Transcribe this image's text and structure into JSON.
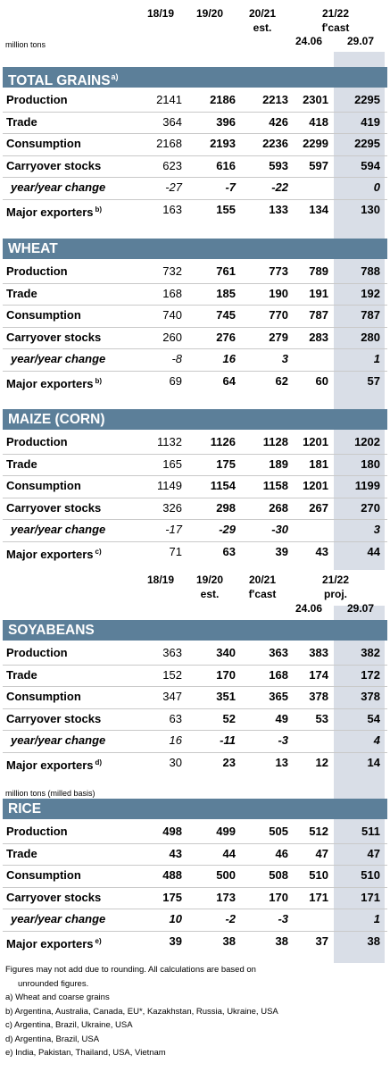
{
  "header_top": {
    "col1": "18/19",
    "col2": "19/20",
    "col3": "20/21",
    "col3_sub": "est.",
    "col45": "21/22",
    "col45_sub": "f'cast",
    "col4_date": "24.06",
    "col5_date": "29.07",
    "unit": "million tons"
  },
  "header_mid": {
    "col1": "18/19",
    "col2": "19/20",
    "col2_sub": "est.",
    "col3": "20/21",
    "col3_sub": "f'cast",
    "col45": "21/22",
    "col45_sub": "proj.",
    "col4_date": "24.06",
    "col5_date": "29.07"
  },
  "sections": [
    {
      "title": "TOTAL GRAINS",
      "title_sup": "a)",
      "rows": [
        {
          "label": "Production",
          "values": [
            "2141",
            "2186",
            "2213",
            "2301",
            "2295"
          ]
        },
        {
          "label": "Trade",
          "values": [
            "364",
            "396",
            "426",
            "418",
            "419"
          ]
        },
        {
          "label": "Consumption",
          "values": [
            "2168",
            "2193",
            "2236",
            "2299",
            "2295"
          ]
        },
        {
          "label": "Carryover stocks",
          "values": [
            "623",
            "616",
            "593",
            "597",
            "594"
          ]
        },
        {
          "label": "year/year change",
          "values": [
            "-27",
            "-7",
            "-22",
            "",
            "0"
          ]
        },
        {
          "label": "Major exporters",
          "sup": "b)",
          "values": [
            "163",
            "155",
            "133",
            "134",
            "130"
          ]
        }
      ]
    },
    {
      "title": "WHEAT",
      "title_sup": "",
      "rows": [
        {
          "label": "Production",
          "values": [
            "732",
            "761",
            "773",
            "789",
            "788"
          ]
        },
        {
          "label": "Trade",
          "values": [
            "168",
            "185",
            "190",
            "191",
            "192"
          ]
        },
        {
          "label": "Consumption",
          "values": [
            "740",
            "745",
            "770",
            "787",
            "787"
          ]
        },
        {
          "label": "Carryover stocks",
          "values": [
            "260",
            "276",
            "279",
            "283",
            "280"
          ]
        },
        {
          "label": "year/year change",
          "values": [
            "-8",
            "16",
            "3",
            "",
            "1"
          ]
        },
        {
          "label": "Major exporters",
          "sup": "b)",
          "values": [
            "69",
            "64",
            "62",
            "60",
            "57"
          ]
        }
      ]
    },
    {
      "title": "MAIZE (CORN)",
      "title_sup": "",
      "rows": [
        {
          "label": "Production",
          "values": [
            "1132",
            "1126",
            "1128",
            "1201",
            "1202"
          ]
        },
        {
          "label": "Trade",
          "values": [
            "165",
            "175",
            "189",
            "181",
            "180"
          ]
        },
        {
          "label": "Consumption",
          "values": [
            "1149",
            "1154",
            "1158",
            "1201",
            "1199"
          ]
        },
        {
          "label": "Carryover stocks",
          "values": [
            "326",
            "298",
            "268",
            "267",
            "270"
          ]
        },
        {
          "label": "year/year change",
          "values": [
            "-17",
            "-29",
            "-30",
            "",
            "3"
          ]
        },
        {
          "label": "Major exporters",
          "sup": "c)",
          "values": [
            "71",
            "63",
            "39",
            "43",
            "44"
          ]
        }
      ]
    },
    {
      "title": "SOYABEANS",
      "title_sup": "",
      "rows": [
        {
          "label": "Production",
          "values": [
            "363",
            "340",
            "363",
            "383",
            "382"
          ]
        },
        {
          "label": "Trade",
          "values": [
            "152",
            "170",
            "168",
            "174",
            "172"
          ]
        },
        {
          "label": "Consumption",
          "values": [
            "347",
            "351",
            "365",
            "378",
            "378"
          ]
        },
        {
          "label": "Carryover stocks",
          "values": [
            "63",
            "52",
            "49",
            "53",
            "54"
          ]
        },
        {
          "label": "year/year change",
          "values": [
            "16",
            "-11",
            "-3",
            "",
            "4"
          ]
        },
        {
          "label": "Major exporters",
          "sup": "d)",
          "values": [
            "30",
            "23",
            "13",
            "12",
            "14"
          ]
        }
      ]
    },
    {
      "title": "RICE",
      "title_sup": "",
      "rows": [
        {
          "label": "Production",
          "values": [
            "498",
            "499",
            "505",
            "512",
            "511"
          ]
        },
        {
          "label": "Trade",
          "values": [
            "43",
            "44",
            "46",
            "47",
            "47"
          ]
        },
        {
          "label": "Consumption",
          "values": [
            "488",
            "500",
            "508",
            "510",
            "510"
          ]
        },
        {
          "label": "Carryover stocks",
          "values": [
            "175",
            "173",
            "170",
            "171",
            "171"
          ]
        },
        {
          "label": "year/year change",
          "values": [
            "10",
            "-2",
            "-3",
            "",
            "1"
          ]
        },
        {
          "label": "Major exporters",
          "sup": "e)",
          "values": [
            "39",
            "38",
            "38",
            "37",
            "38"
          ]
        }
      ]
    }
  ],
  "rice_unit": "million tons (milled basis)",
  "notes": {
    "rounding_1": "Figures may not add due to rounding. All calculations are based on",
    "rounding_2": "unrounded figures.",
    "a": "a) Wheat and coarse grains",
    "b": "b) Argentina, Australia, Canada, EU*, Kazakhstan, Russia, Ukraine, USA",
    "c": "c) Argentina, Brazil, Ukraine, USA",
    "d": "d) Argentina, Brazil, USA",
    "e": "e) India, Pakistan, Thailand, USA, Vietnam"
  },
  "colors": {
    "section_bar": "#5c7f99",
    "highlight_column": "#d9dee7",
    "row_separator": "#c9c9c9"
  }
}
